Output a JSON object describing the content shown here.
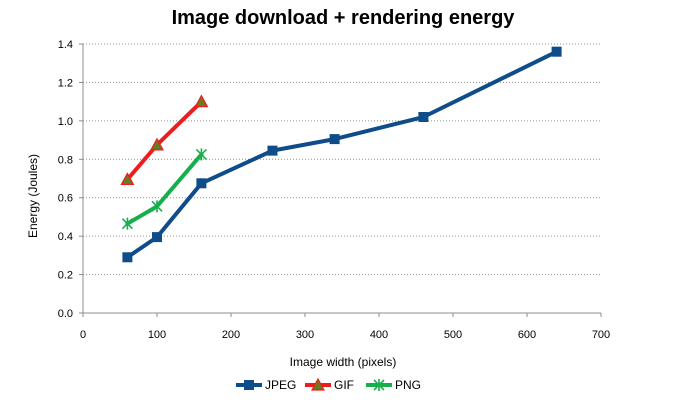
{
  "chart_data": {
    "type": "line",
    "title": "Image download + rendering energy",
    "xlabel": "Image width (pixels)",
    "ylabel": "Energy (Joules)",
    "xlim": [
      0,
      700
    ],
    "ylim": [
      0,
      1.4
    ],
    "x_ticks": [
      "0",
      "100",
      "200",
      "300",
      "400",
      "500",
      "600",
      "700"
    ],
    "y_ticks": [
      "0.0",
      "0.2",
      "0.4",
      "0.6",
      "0.8",
      "1.0",
      "1.2",
      "1.4"
    ],
    "grid": "horizontal dotted",
    "legend_position": "bottom",
    "series": [
      {
        "name": "JPEG",
        "color": "#0F4C8A",
        "marker": "square",
        "x": [
          60,
          100,
          160,
          256,
          340,
          460,
          640
        ],
        "y": [
          0.29,
          0.395,
          0.675,
          0.845,
          0.905,
          1.02,
          1.36
        ]
      },
      {
        "name": "GIF",
        "color": "#EE1C1C",
        "marker": "triangle",
        "marker_color": "#6B7A1E",
        "x": [
          60,
          100,
          160
        ],
        "y": [
          0.695,
          0.875,
          1.1
        ]
      },
      {
        "name": "PNG",
        "color": "#17AF4B",
        "marker": "asterisk",
        "x": [
          60,
          100,
          160
        ],
        "y": [
          0.465,
          0.555,
          0.825
        ]
      }
    ]
  }
}
